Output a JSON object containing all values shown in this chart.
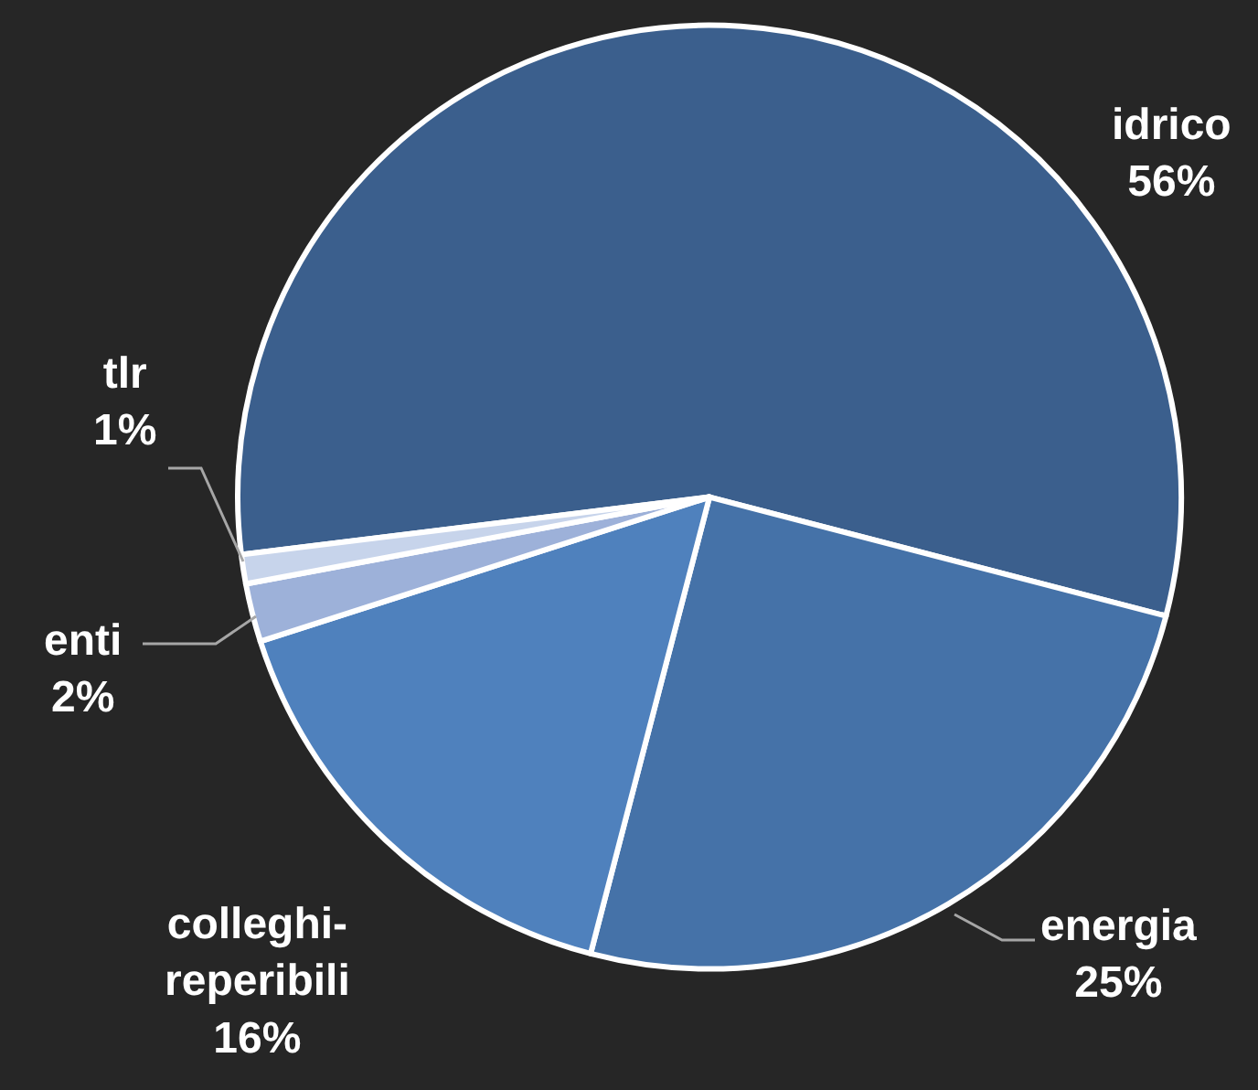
{
  "chart_data": {
    "type": "pie",
    "categories": [
      "idrico",
      "energia",
      "colleghi-reperibili",
      "enti",
      "tlr"
    ],
    "values": [
      56,
      25,
      16,
      2,
      1
    ],
    "value_labels": [
      "56%",
      "25%",
      "16%",
      "2%",
      "1%"
    ],
    "colors": [
      "#3b5f8d",
      "#4572a8",
      "#4f81bd",
      "#9db1d9",
      "#c7d4eb"
    ],
    "legend": false
  }
}
